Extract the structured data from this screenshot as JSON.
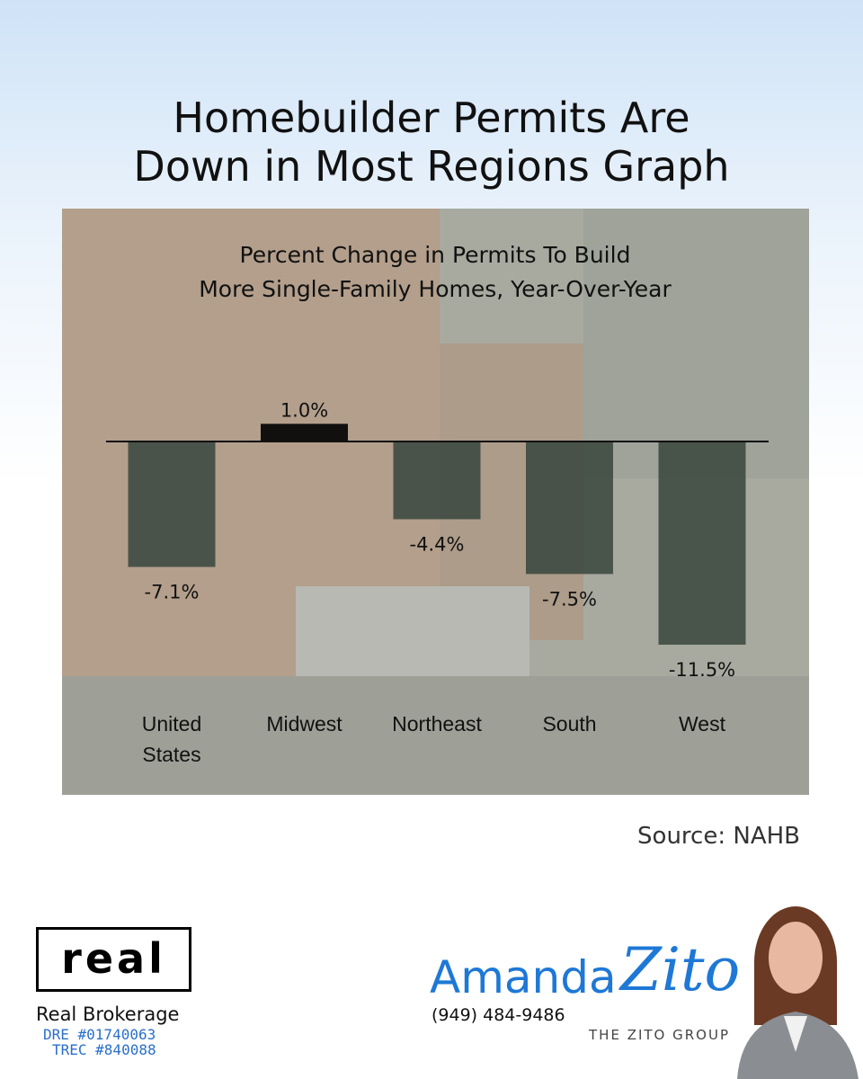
{
  "heading": [
    "Homebuilder Permits Are",
    "Down in Most Regions Graph"
  ],
  "chart_data": {
    "type": "bar",
    "title": [
      "Percent Change in Permits To Build",
      "More Single-Family Homes, Year-Over-Year"
    ],
    "categories": [
      "United States",
      "Midwest",
      "Northeast",
      "South",
      "West"
    ],
    "values": [
      -7.1,
      1.0,
      -4.4,
      -7.5,
      -11.5
    ],
    "value_labels": [
      "-7.1%",
      "1.0%",
      "-4.4%",
      "-7.5%",
      "-11.5%"
    ],
    "colors": [
      "#3e4a41",
      "#000000",
      "#3e4a41",
      "#3e4a41",
      "#3e4a41"
    ]
  },
  "source": "Source: NAHB",
  "footer": {
    "logo": "real",
    "brokerage": "Real Brokerage",
    "dre": "DRE #01740063",
    "trec": "TREC #840088",
    "first_name": "Amanda",
    "last_name": "Zito",
    "phone": "(949) 484-9486",
    "group": "THE ZITO GROUP"
  }
}
